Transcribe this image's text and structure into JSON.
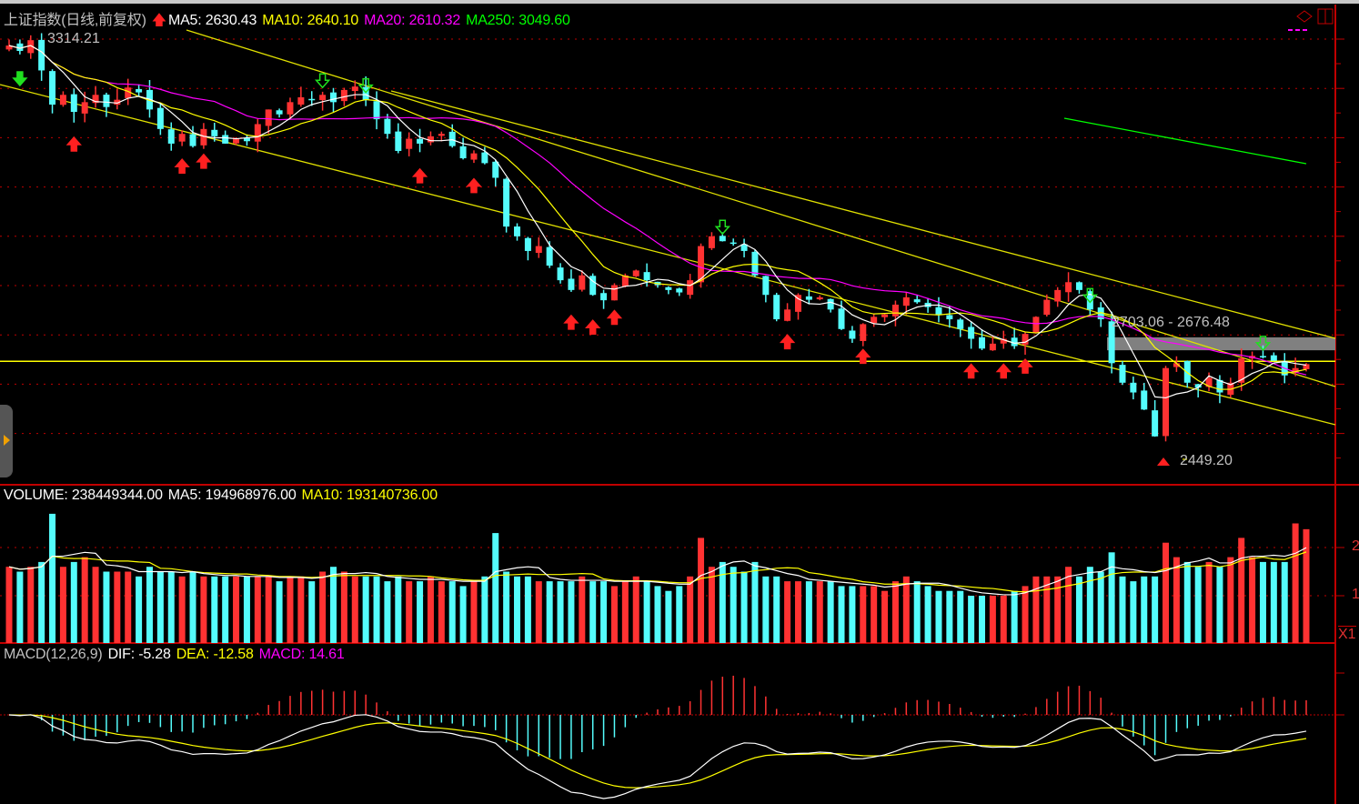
{
  "header": {
    "title": "上证指数(日线,前复权)",
    "ma5": "MA5: 2630.43",
    "ma10": "MA10: 2640.10",
    "ma20": "MA20: 2610.32",
    "ma250": "MA250: 3049.60"
  },
  "volume_header": {
    "volume": "VOLUME: 238449344.00",
    "ma5": "MA5: 194968976.00",
    "ma10": "MA10: 193140736.00"
  },
  "macd_header": {
    "name": "MACD(12,26,9)",
    "dif": "DIF: -5.28",
    "dea": "DEA: -12.58",
    "macd": "MACD: 14.61"
  },
  "annotations": {
    "high_label": "3314.21",
    "low_label": "2449.20",
    "range_label": "2703.06 - 2676.48"
  },
  "right_axis": {
    "vol_2": "2",
    "vol_1": "1",
    "multiplier": "X1"
  },
  "colors": {
    "up": "#ff3232",
    "down": "#54fcfc",
    "ma5": "#ffffff",
    "ma10": "#ffff00",
    "ma20": "#ff00ff",
    "ma250": "#00ff00",
    "grid": "#c00000"
  },
  "chart_data": {
    "type": "candlestick",
    "ylim": [
      2405,
      3340
    ],
    "high": 3314.21,
    "low": 2449.2,
    "horizontal_line": 2654,
    "band": [
      2703.06,
      2676.48
    ],
    "close": [
      3301,
      3290,
      3312,
      3250,
      3180,
      3200,
      3165,
      3185,
      3200,
      3175,
      3190,
      3215,
      3205,
      3170,
      3130,
      3100,
      3120,
      3095,
      3130,
      3115,
      3100,
      3110,
      3105,
      3140,
      3170,
      3160,
      3185,
      3195,
      3190,
      3200,
      3185,
      3210,
      3217,
      3190,
      3150,
      3120,
      3085,
      3110,
      3100,
      3115,
      3120,
      3095,
      3070,
      3080,
      3060,
      3030,
      2930,
      2910,
      2880,
      2890,
      2850,
      2820,
      2800,
      2830,
      2790,
      2779,
      2810,
      2830,
      2840,
      2820,
      2810,
      2800,
      2795,
      2820,
      2890,
      2910,
      2900,
      2895,
      2880,
      2830,
      2790,
      2740,
      2760,
      2790,
      2780,
      2785,
      2760,
      2720,
      2700,
      2730,
      2745,
      2750,
      2770,
      2785,
      2775,
      2765,
      2750,
      2740,
      2720,
      2700,
      2680,
      2690,
      2700,
      2685,
      2710,
      2745,
      2780,
      2800,
      2816,
      2800,
      2760,
      2740,
      2650,
      2610,
      2590,
      2555,
      2500,
      2640,
      2650,
      2610,
      2600,
      2620,
      2590,
      2610,
      2660,
      2665,
      2662,
      2655,
      2625,
      2640,
      2648
    ],
    "volume": [
      160000000.0,
      150000000.0,
      160000000.0,
      170000000.0,
      270000000.0,
      160000000.0,
      170000000.0,
      180000000.0,
      160000000.0,
      150000000.0,
      150000000.0,
      150000000.0,
      140000000.0,
      160000000.0,
      150000000.0,
      150000000.0,
      140000000.0,
      150000000.0,
      140000000.0,
      140000000.0,
      140000000.0,
      140000000.0,
      140000000.0,
      140000000.0,
      140000000.0,
      130000000.0,
      140000000.0,
      140000000.0,
      130000000.0,
      150000000.0,
      160000000.0,
      150000000.0,
      140000000.0,
      140000000.0,
      140000000.0,
      130000000.0,
      140000000.0,
      130000000.0,
      130000000.0,
      140000000.0,
      130000000.0,
      130000000.0,
      120000000.0,
      130000000.0,
      140000000.0,
      230000000.0,
      150000000.0,
      140000000.0,
      140000000.0,
      130000000.0,
      130000000.0,
      130000000.0,
      130000000.0,
      140000000.0,
      130000000.0,
      130000000.0,
      120000000.0,
      130000000.0,
      140000000.0,
      130000000.0,
      120000000.0,
      110000000.0,
      120000000.0,
      140000000.0,
      220000000.0,
      160000000.0,
      170000000.0,
      160000000.0,
      150000000.0,
      170000000.0,
      140000000.0,
      140000000.0,
      130000000.0,
      130000000.0,
      130000000.0,
      130000000.0,
      130000000.0,
      120000000.0,
      120000000.0,
      120000000.0,
      120000000.0,
      110000000.0,
      130000000.0,
      140000000.0,
      130000000.0,
      120000000.0,
      110000000.0,
      110000000.0,
      110000000.0,
      100000000.0,
      100000000.0,
      100000000.0,
      100000000.0,
      110000000.0,
      120000000.0,
      140000000.0,
      140000000.0,
      140000000.0,
      160000000.0,
      140000000.0,
      160000000.0,
      150000000.0,
      190000000.0,
      140000000.0,
      130000000.0,
      140000000.0,
      140000000.0,
      210000000.0,
      180000000.0,
      170000000.0,
      160000000.0,
      170000000.0,
      160000000.0,
      180000000.0,
      220000000.0,
      180000000.0,
      170000000.0,
      170000000.0,
      170000000.0,
      250000000.0,
      238000000.0
    ],
    "buy_signals": [
      6,
      16,
      18,
      38,
      43,
      52,
      54,
      56,
      72,
      79,
      89,
      92,
      94
    ],
    "sell_signals": [
      29,
      33,
      66,
      100,
      116
    ],
    "strong_sell_signals": [
      1
    ],
    "macd_params": [
      12,
      26,
      9
    ]
  }
}
